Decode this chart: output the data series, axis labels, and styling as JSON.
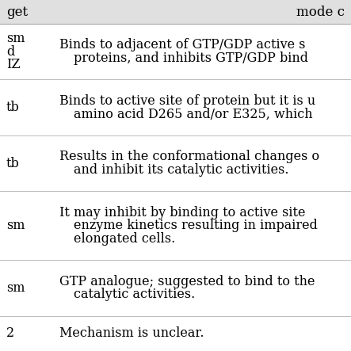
{
  "title_row_left": "get",
  "title_row_right": "mode c",
  "rows": [
    {
      "col1": "sm\nd\nIZ",
      "col2_lines": [
        "Binds to adjacent of GTP/GDP active s",
        "    proteins, and inhibits GTP/GDP bind"
      ]
    },
    {
      "col1": "tb",
      "col2_lines": [
        "Binds to active site of protein but it is u",
        "    amino acid D265 and/or E325, which"
      ]
    },
    {
      "col1": "tb",
      "col2_lines": [
        "Results in the conformational changes o",
        "    and inhibit its catalytic activities."
      ]
    },
    {
      "col1": "sm",
      "col2_lines": [
        "It may inhibit by binding to active site",
        "    enzyme kinetics resulting in impaired",
        "    elongated cells."
      ]
    },
    {
      "col1": "sm",
      "col2_lines": [
        "GTP analogue; suggested to bind to the",
        "    catalytic activities."
      ]
    },
    {
      "col1": "2",
      "col2_lines": [
        "Mechanism is unclear."
      ]
    }
  ],
  "bg_header": "#e0e0e0",
  "bg_white": "#ffffff",
  "text_color": "#000000",
  "header_fontsize": 12,
  "body_fontsize": 11.5,
  "figwidth": 4.43,
  "figheight": 4.43,
  "dpi": 100
}
